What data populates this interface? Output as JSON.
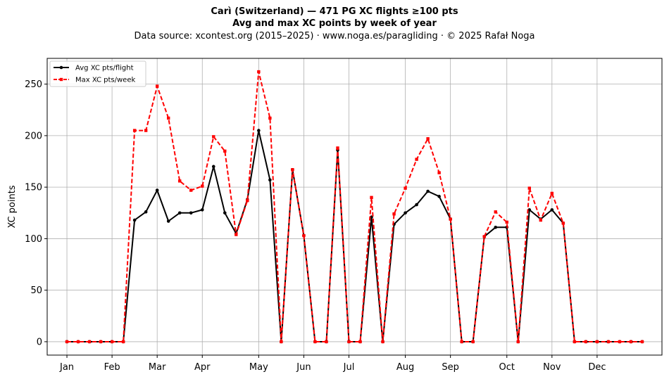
{
  "chart_data": {
    "type": "line",
    "title": "Carì (Switzerland)  —  471 PG XC flights ≥100 pts",
    "subtitle": "Avg and max XC points by week of year",
    "source_note": "Data source: xcontest.org (2015–2025)  ·  www.noga.es/paragliding  ·  © 2025 Rafał Noga",
    "ylabel": "XC points",
    "xlabel": "",
    "ylim": [
      -13,
      275
    ],
    "xlim": [
      -0.75,
      53.75
    ],
    "yticks": [
      0,
      50,
      100,
      150,
      200,
      250
    ],
    "xticks": [
      {
        "label": "Jan",
        "x": 1
      },
      {
        "label": "Feb",
        "x": 5
      },
      {
        "label": "Mar",
        "x": 9
      },
      {
        "label": "Apr",
        "x": 13
      },
      {
        "label": "May",
        "x": 18
      },
      {
        "label": "Jun",
        "x": 22
      },
      {
        "label": "Jul",
        "x": 26
      },
      {
        "label": "Aug",
        "x": 31
      },
      {
        "label": "Sep",
        "x": 35
      },
      {
        "label": "Oct",
        "x": 40
      },
      {
        "label": "Nov",
        "x": 44
      },
      {
        "label": "Dec",
        "x": 48
      }
    ],
    "grid": true,
    "legend_position": "top-left",
    "x": [
      1,
      2,
      3,
      4,
      5,
      6,
      7,
      8,
      9,
      10,
      11,
      12,
      13,
      14,
      15,
      16,
      17,
      18,
      19,
      20,
      21,
      22,
      23,
      24,
      25,
      26,
      27,
      28,
      29,
      30,
      31,
      32,
      33,
      34,
      35,
      36,
      37,
      38,
      39,
      40,
      41,
      42,
      43,
      44,
      45,
      46,
      47,
      48,
      49,
      50,
      51,
      52
    ],
    "series": [
      {
        "name": "Avg XC pts/flight",
        "color": "#000000",
        "style": "solid",
        "marker": "circle",
        "values": [
          0,
          0,
          0,
          0,
          0,
          0,
          118,
          126,
          147,
          117,
          125,
          125,
          128,
          170,
          125,
          105,
          138,
          205,
          157,
          0,
          167,
          103,
          0,
          0,
          186,
          0,
          0,
          121,
          0,
          114,
          125,
          133,
          146,
          141,
          119,
          0,
          0,
          102,
          111,
          111,
          0,
          128,
          119,
          128,
          115,
          0,
          0,
          0,
          0,
          0,
          0,
          0
        ]
      },
      {
        "name": "Max XC pts/week",
        "color": "#ff0000",
        "style": "dashed",
        "marker": "square",
        "values": [
          0,
          0,
          0,
          0,
          0,
          0,
          205,
          205,
          248,
          217,
          156,
          147,
          151,
          199,
          185,
          104,
          137,
          262,
          217,
          0,
          167,
          103,
          0,
          0,
          188,
          0,
          0,
          140,
          0,
          124,
          149,
          177,
          197,
          164,
          119,
          0,
          0,
          102,
          126,
          116,
          0,
          149,
          118,
          144,
          115,
          0,
          0,
          0,
          0,
          0,
          0,
          0
        ]
      }
    ]
  }
}
